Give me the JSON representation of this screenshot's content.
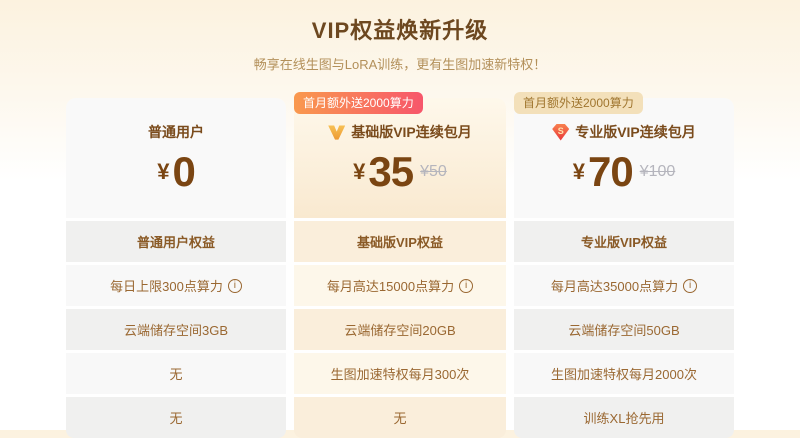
{
  "header": {
    "title": "VIP权益焕新升级",
    "subtitle": "畅享在线生图与LoRA训练，更有生图加速新特权！"
  },
  "icons": {
    "info_glyph": "i",
    "pro_gem_letter": "S",
    "basic_gem_name": "basic-vip-gold-gem",
    "pro_gem_name": "pro-vip-red-gem"
  },
  "colors": {
    "title_brown": "#6d4820",
    "subtitle_tan": "#b3905a",
    "price_brown": "#7a4512",
    "cell_text_brown": "#9a6832",
    "hot_badge_from": "#f9994e",
    "hot_badge_to": "#f7566b",
    "muted_badge_bg": "#f3e0ba",
    "muted_badge_text": "#a0762f",
    "old_price_gray": "#b5b5bd",
    "cream_row_odd": "#faeedb",
    "gray_row_odd": "#f0f0ef"
  },
  "plans": [
    {
      "name": "普通用户",
      "badge": "",
      "currency": "¥",
      "price": "0",
      "old_price": "",
      "benefit_header": "普通用户权益",
      "benefits": [
        "每日上限300点算力",
        "云端储存空间3GB",
        "无",
        "无"
      ]
    },
    {
      "name": "基础版VIP连续包月",
      "badge": "首月额外送2000算力",
      "currency": "¥",
      "price": "35",
      "old_price": "¥50",
      "benefit_header": "基础版VIP权益",
      "benefits": [
        "每月高达15000点算力",
        "云端储存空间20GB",
        "生图加速特权每月300次",
        "无"
      ]
    },
    {
      "name": "专业版VIP连续包月",
      "badge": "首月额外送2000算力",
      "currency": "¥",
      "price": "70",
      "old_price": "¥100",
      "benefit_header": "专业版VIP权益",
      "benefits": [
        "每月高达35000点算力",
        "云端储存空间50GB",
        "生图加速特权每月2000次",
        "训练XL抢先用"
      ]
    }
  ]
}
